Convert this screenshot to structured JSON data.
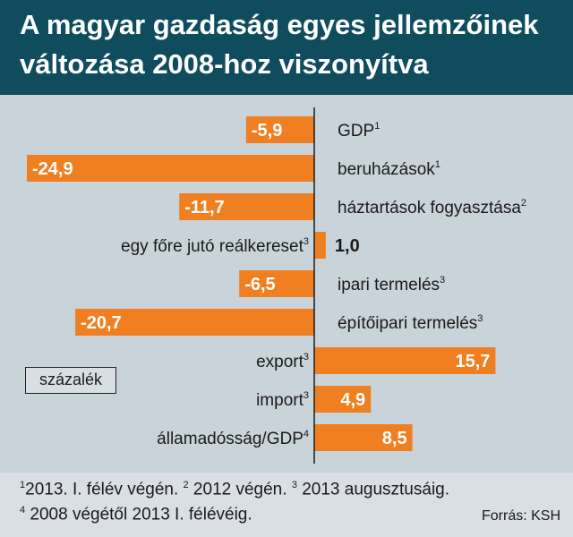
{
  "header": {
    "title_line1": "A magyar gazdaság egyes jellemzőinek",
    "title_line2": "változása 2008-hoz viszonyítva"
  },
  "unit_label": "százalék",
  "footnotes": {
    "line1": [
      {
        "sup": "1",
        "text": "2013. I. félév végén. "
      },
      {
        "sup": "2",
        "text": " 2012 végén. "
      },
      {
        "sup": "3",
        "text": " 2013 augusztusáig."
      }
    ],
    "line2": [
      {
        "sup": "4",
        "text": " 2008 végétől 2013 I. félévéig."
      }
    ]
  },
  "source": "Forrás: KSH",
  "colors": {
    "bar": "#f07f22",
    "header_bg": "#0f4c5e",
    "chart_bg": "#c9d3da",
    "footer_bg": "#d9dfe4"
  },
  "chart_data": {
    "type": "bar",
    "orientation": "horizontal",
    "title": "A magyar gazdaság egyes jellemzőinek változása 2008-hoz viszonyítva",
    "unit": "százalék",
    "categories": [
      {
        "label": "GDP",
        "sup": "1"
      },
      {
        "label": "beruházások",
        "sup": "1"
      },
      {
        "label": "háztartások fogyasztása",
        "sup": "2"
      },
      {
        "label": "egy főre jutó reálkereset",
        "sup": "3"
      },
      {
        "label": "ipari termelés",
        "sup": "3"
      },
      {
        "label": "építőipari termelés",
        "sup": "3"
      },
      {
        "label": "export",
        "sup": "3"
      },
      {
        "label": "import",
        "sup": "3"
      },
      {
        "label": "államadósság/GDP",
        "sup": "4"
      }
    ],
    "values": [
      -5.9,
      -24.9,
      -11.7,
      1.0,
      -6.5,
      -20.7,
      15.7,
      4.9,
      8.5
    ],
    "value_labels": [
      "-5,9",
      "-24,9",
      "-11,7",
      "1,0",
      "-6,5",
      "-20,7",
      "15,7",
      "4,9",
      "8,5"
    ],
    "xlim": [
      -25,
      16
    ]
  }
}
